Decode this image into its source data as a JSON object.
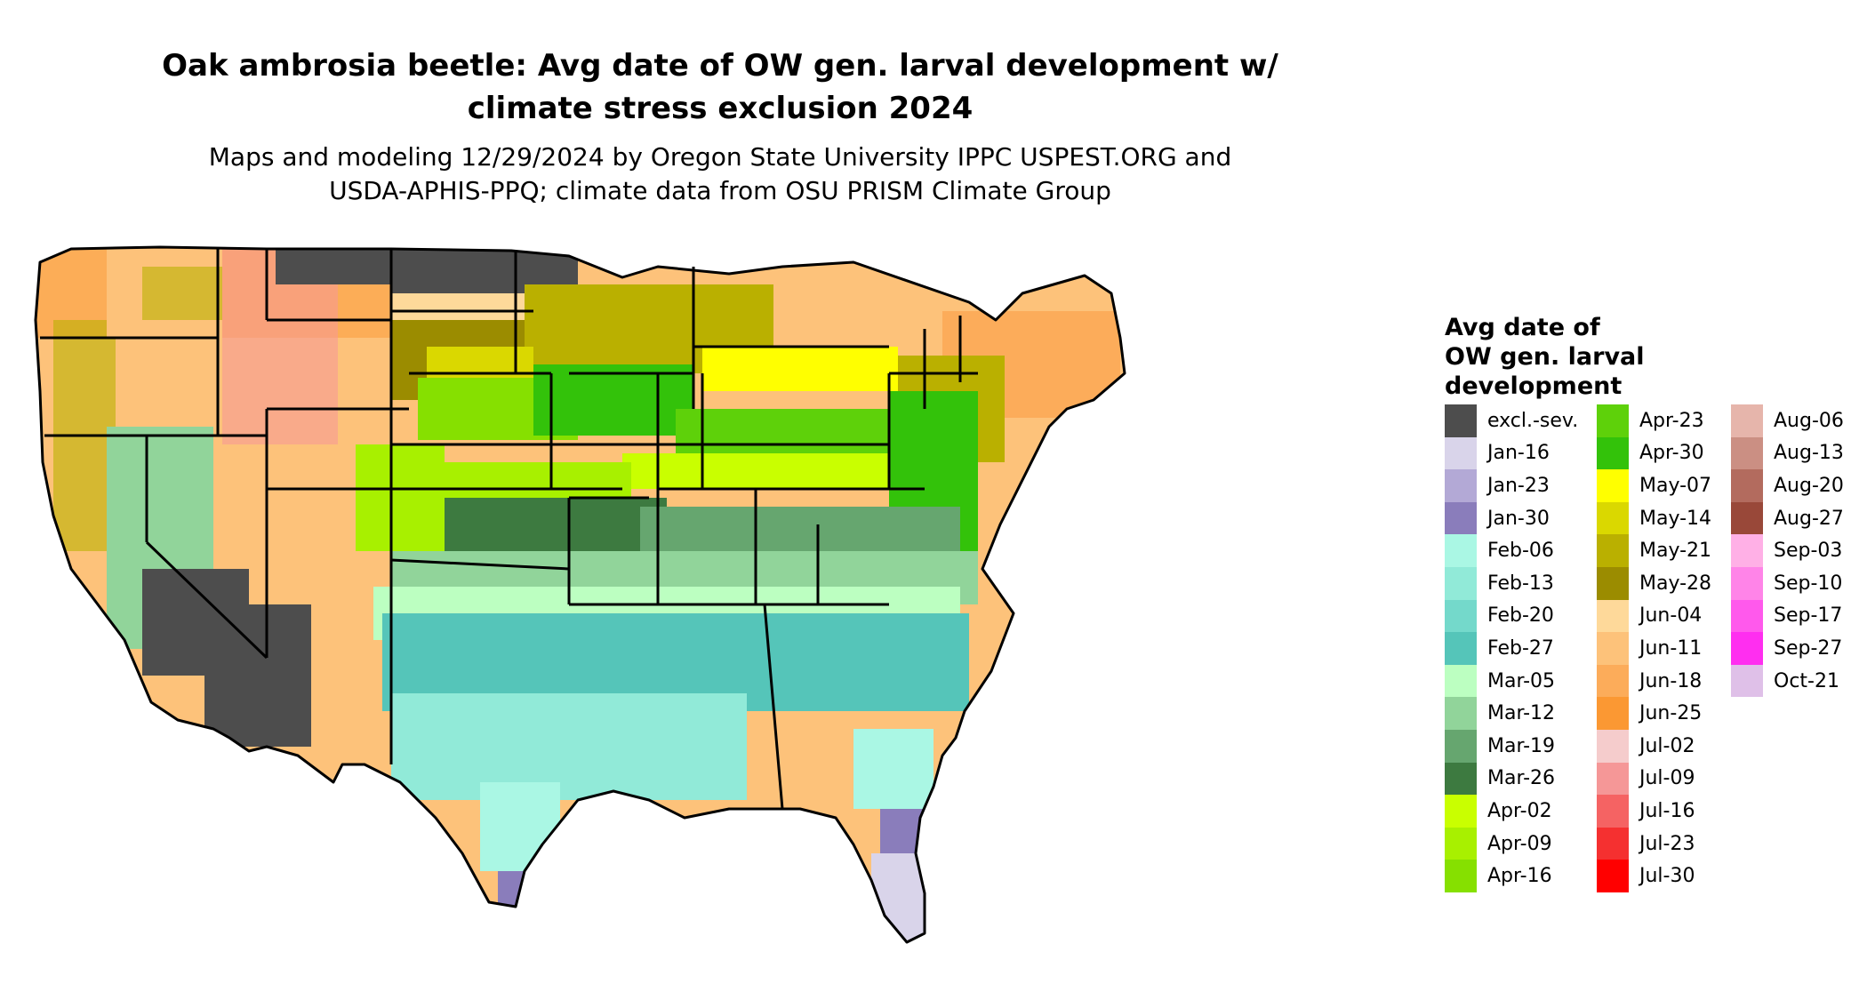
{
  "title_line1": "Oak ambrosia beetle: Avg date of OW gen. larval development w/",
  "title_line2": "climate stress exclusion 2024",
  "subtitle_line1": "Maps and modeling 12/29/2024 by Oregon State University IPPC USPEST.ORG and",
  "subtitle_line2": "USDA-APHIS-PPQ; climate data from OSU PRISM Climate Group",
  "legend": {
    "title_line1": "Avg date of",
    "title_line2": "OW gen. larval",
    "title_line3": "development",
    "col1": [
      {
        "label": "excl.-sev.",
        "color": "#4d4d4d"
      },
      {
        "label": "Jan-16",
        "color": "#d9d4ea"
      },
      {
        "label": "Jan-23",
        "color": "#b3a9d6"
      },
      {
        "label": "Jan-30",
        "color": "#8a7dbb"
      },
      {
        "label": "Feb-06",
        "color": "#aaf7e4"
      },
      {
        "label": "Feb-13",
        "color": "#91ead8"
      },
      {
        "label": "Feb-20",
        "color": "#74d9cb"
      },
      {
        "label": "Feb-27",
        "color": "#55c5b9"
      },
      {
        "label": "Mar-05",
        "color": "#bcffc1"
      },
      {
        "label": "Mar-12",
        "color": "#91d49a"
      },
      {
        "label": "Mar-19",
        "color": "#66a66f"
      },
      {
        "label": "Mar-26",
        "color": "#3d7a40"
      },
      {
        "label": "Apr-02",
        "color": "#c9ff00"
      },
      {
        "label": "Apr-09",
        "color": "#a8f000"
      },
      {
        "label": "Apr-16",
        "color": "#86e000"
      }
    ],
    "col2": [
      {
        "label": "Apr-23",
        "color": "#5ed10a"
      },
      {
        "label": "Apr-30",
        "color": "#33c20a"
      },
      {
        "label": "May-07",
        "color": "#ffff00"
      },
      {
        "label": "May-14",
        "color": "#dad800"
      },
      {
        "label": "May-21",
        "color": "#bab000"
      },
      {
        "label": "May-28",
        "color": "#9b8c00"
      },
      {
        "label": "Jun-04",
        "color": "#fed99a"
      },
      {
        "label": "Jun-11",
        "color": "#fdc27a"
      },
      {
        "label": "Jun-18",
        "color": "#fcac5a"
      },
      {
        "label": "Jun-25",
        "color": "#fb9833"
      },
      {
        "label": "Jul-02",
        "color": "#f5cccc"
      },
      {
        "label": "Jul-09",
        "color": "#f59797"
      },
      {
        "label": "Jul-16",
        "color": "#f56363"
      },
      {
        "label": "Jul-23",
        "color": "#f53030"
      },
      {
        "label": "Jul-30",
        "color": "#ff0000"
      }
    ],
    "col3": [
      {
        "label": "Aug-06",
        "color": "#e6b5ab"
      },
      {
        "label": "Aug-13",
        "color": "#cb8f83"
      },
      {
        "label": "Aug-20",
        "color": "#b36b5e"
      },
      {
        "label": "Aug-27",
        "color": "#994839"
      },
      {
        "label": "Sep-03",
        "color": "#ffb0e6"
      },
      {
        "label": "Sep-10",
        "color": "#ff84e8"
      },
      {
        "label": "Sep-17",
        "color": "#ff59ec"
      },
      {
        "label": "Sep-27",
        "color": "#ff2ef0"
      },
      {
        "label": "Oct-21",
        "color": "#dfc0e8"
      }
    ]
  }
}
